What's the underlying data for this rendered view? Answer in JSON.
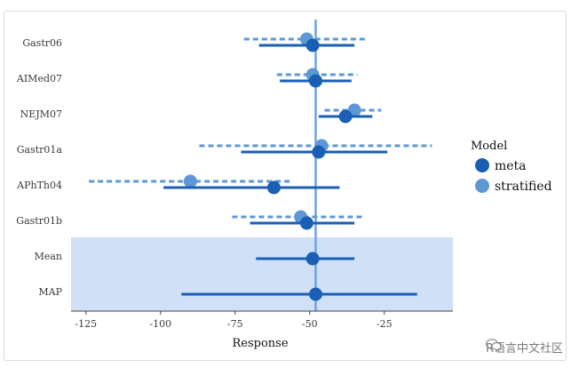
{
  "chart_data": {
    "type": "forest",
    "title": "",
    "xlabel": "Response",
    "ylabel": "",
    "xlim": [
      -130,
      -2
    ],
    "x_ticks": [
      -125,
      -100,
      -75,
      -50,
      -25
    ],
    "reference_line": -48,
    "categories": [
      "Gastr06",
      "AIMed07",
      "NEJM07",
      "Gastr01a",
      "APhTh04",
      "Gastr01b",
      "Mean",
      "MAP"
    ],
    "shaded_rows": [
      "Mean",
      "MAP"
    ],
    "legend": {
      "title": "Model",
      "position": "right"
    },
    "series": [
      {
        "name": "meta",
        "color": "#1a5fb4",
        "line_style": "solid",
        "points": [
          {
            "label": "Gastr06",
            "estimate": -49,
            "lower": -67,
            "upper": -35
          },
          {
            "label": "AIMed07",
            "estimate": -48,
            "lower": -60,
            "upper": -36
          },
          {
            "label": "NEJM07",
            "estimate": -38,
            "lower": -47,
            "upper": -29
          },
          {
            "label": "Gastr01a",
            "estimate": -47,
            "lower": -73,
            "upper": -24
          },
          {
            "label": "APhTh04",
            "estimate": -62,
            "lower": -99,
            "upper": -40
          },
          {
            "label": "Gastr01b",
            "estimate": -51,
            "lower": -70,
            "upper": -35
          },
          {
            "label": "Mean",
            "estimate": -49,
            "lower": -68,
            "upper": -35
          },
          {
            "label": "MAP",
            "estimate": -48,
            "lower": -93,
            "upper": -14
          }
        ]
      },
      {
        "name": "stratified",
        "color": "#5e97d6",
        "line_style": "dashed",
        "points": [
          {
            "label": "Gastr06",
            "estimate": -51,
            "lower": -72,
            "upper": -31
          },
          {
            "label": "AIMed07",
            "estimate": -49,
            "lower": -61,
            "upper": -34
          },
          {
            "label": "NEJM07",
            "estimate": -35,
            "lower": -45,
            "upper": -26
          },
          {
            "label": "Gastr01a",
            "estimate": -46,
            "lower": -87,
            "upper": -9
          },
          {
            "label": "APhTh04",
            "estimate": -90,
            "lower": -124,
            "upper": -56
          },
          {
            "label": "Gastr01b",
            "estimate": -53,
            "lower": -76,
            "upper": -32
          }
        ]
      }
    ]
  },
  "colors": {
    "shade": "#cfe0f7",
    "reference": "#6ea2e0",
    "axis": "#444444"
  },
  "watermark": {
    "text": "R语言中文社区",
    "icon": "wechat-icon"
  }
}
